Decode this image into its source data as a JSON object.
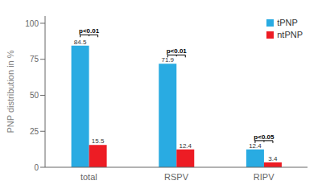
{
  "chart_data": {
    "type": "bar",
    "categories": [
      "total",
      "RSPV",
      "RIPV"
    ],
    "series": [
      {
        "name": "tPNP",
        "color": "#29ABE2",
        "values": [
          84.5,
          71.9,
          12.4
        ]
      },
      {
        "name": "ntPNP",
        "color": "#ED1C24",
        "values": [
          15.5,
          12.4,
          3.4
        ]
      }
    ],
    "ylabel": "PNP distribution in %",
    "ylim": [
      0,
      105
    ],
    "yticks": [
      0,
      25,
      50,
      75,
      100
    ],
    "data_labels": true,
    "grid": false,
    "legend": "upper right",
    "annotations": [
      {
        "text": "p<0.01",
        "category": "total",
        "y": 92
      },
      {
        "text": "p<0.01",
        "category": "RSPV",
        "y": 78
      },
      {
        "text": "p<0.05",
        "category": "RIPV",
        "y": 18.5
      }
    ]
  }
}
